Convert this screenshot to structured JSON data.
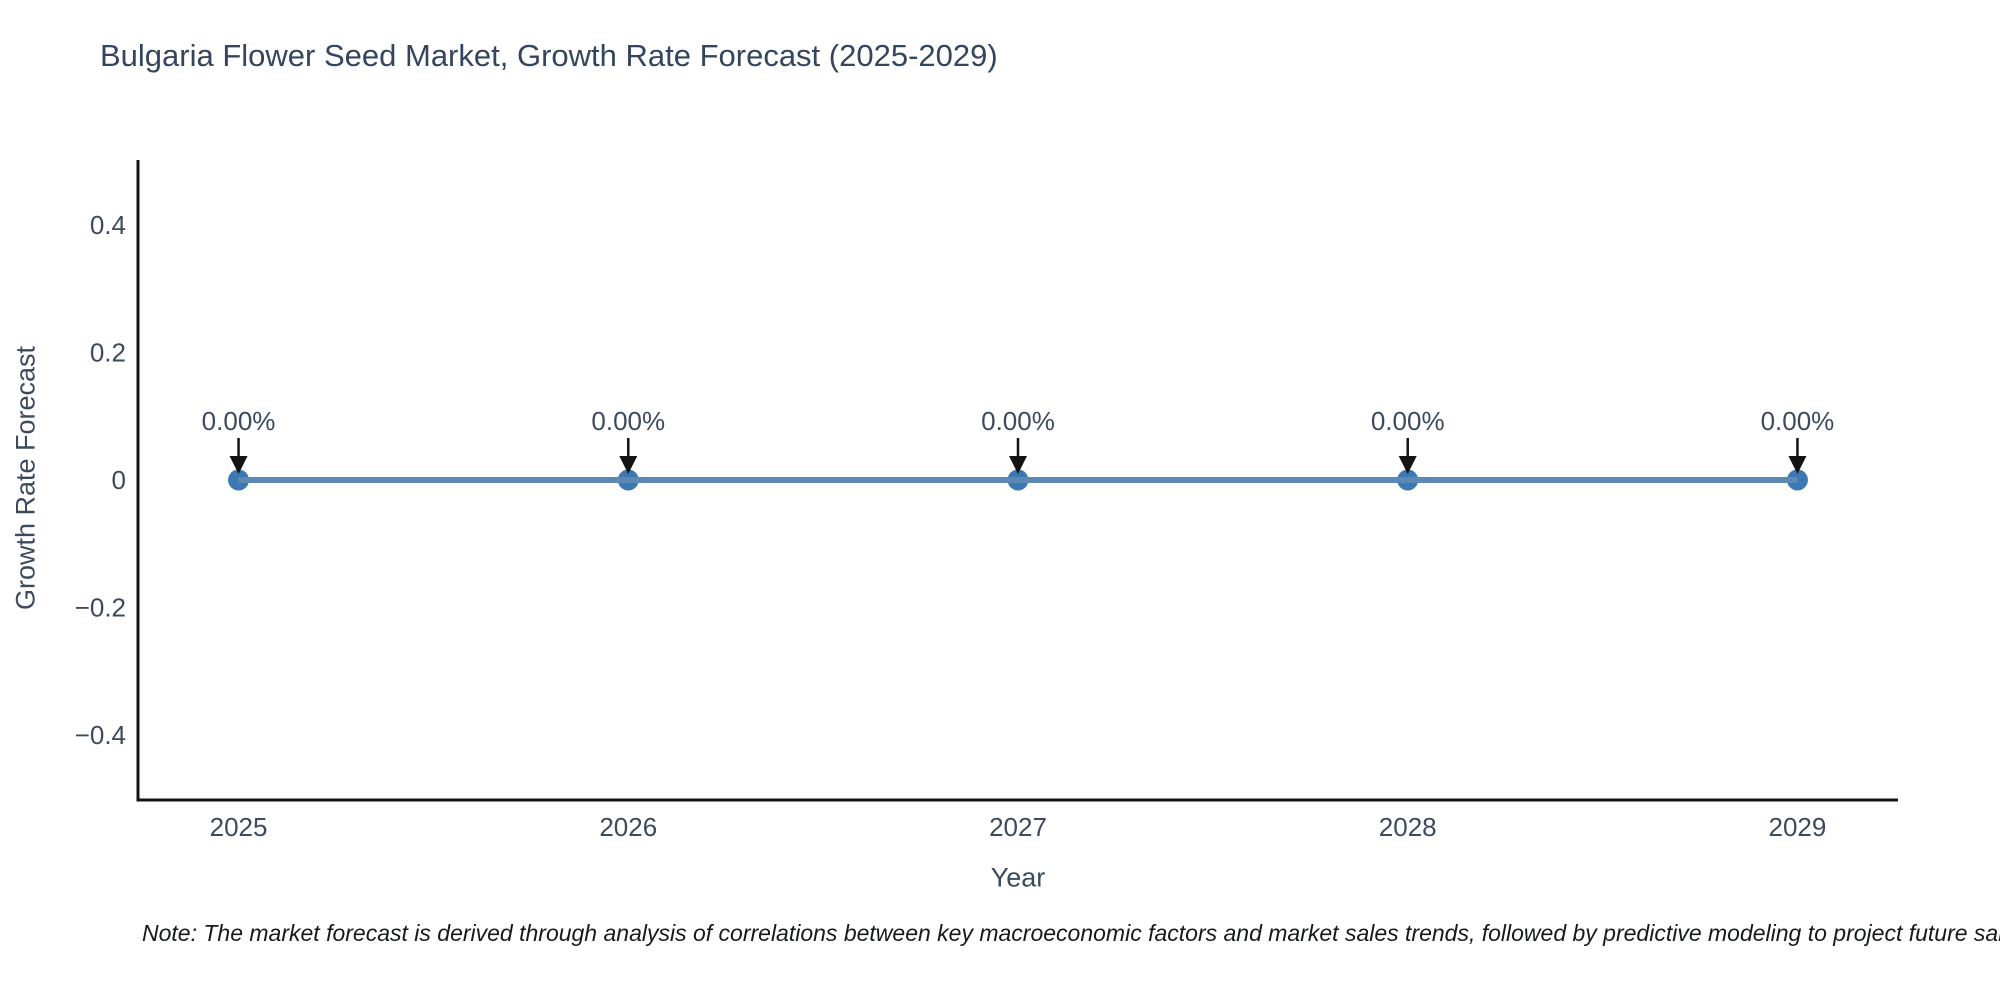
{
  "header": {
    "title": "Bulgaria Flower Seed Market, Growth Rate Forecast (2025-2029)"
  },
  "footnote": {
    "text": "Note: The market forecast is derived through analysis of correlations between key macroeconomic factors and market sales trends, followed by predictive modeling to project future sales."
  },
  "chart_data": {
    "type": "line",
    "title": "Bulgaria Flower Seed Market, Growth Rate Forecast (2025-2029)",
    "xlabel": "Year",
    "ylabel": "Growth Rate Forecast",
    "x": [
      2025,
      2026,
      2027,
      2028,
      2029
    ],
    "values": [
      0,
      0,
      0,
      0,
      0
    ],
    "point_labels": [
      "0.00%",
      "0.00%",
      "0.00%",
      "0.00%",
      "0.00%"
    ],
    "xtick_labels": [
      "2025",
      "2026",
      "2027",
      "2028",
      "2029"
    ],
    "ytick_values": [
      0.4,
      0.2,
      0,
      -0.2,
      -0.4
    ],
    "ytick_labels": [
      "0.4",
      "0.2",
      "0",
      "−0.2",
      "−0.4"
    ],
    "xlim": [
      2024.742,
      2029.258
    ],
    "ylim": [
      -0.502,
      0.502
    ],
    "grid": false,
    "legend": "none",
    "colors": {
      "line": "#5b89b4",
      "marker": "#3c79b2",
      "spine": "#141414",
      "tick_label": "#3d4a5d",
      "annotation_text": "#3d4a5d",
      "annotation_arrow": "#141414",
      "title": "#36455e"
    }
  }
}
